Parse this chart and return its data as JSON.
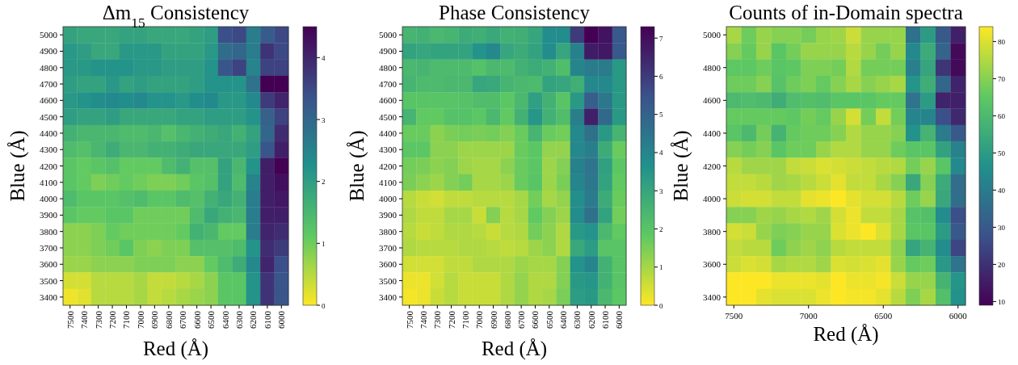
{
  "chart_data": [
    {
      "type": "heatmap",
      "title": "Δm$_{15}$ Consistency",
      "xlabel": "Red (Å)",
      "ylabel": "Blue (Å)",
      "categories": [
        "7500",
        "7400",
        "7300",
        "7200",
        "7100",
        "7000",
        "6900",
        "6800",
        "6700",
        "6600",
        "6500",
        "6400",
        "6300",
        "6200",
        "6100",
        "6000"
      ],
      "y_categories": [
        "5000",
        "4900",
        "4800",
        "4700",
        "4600",
        "4500",
        "4400",
        "4300",
        "4200",
        "4100",
        "4000",
        "3900",
        "3800",
        "3700",
        "3600",
        "3500",
        "3400"
      ],
      "cells": [
        [
          1.9,
          1.8,
          1.8,
          1.8,
          1.9,
          1.9,
          1.8,
          1.8,
          1.8,
          1.9,
          2.0,
          3.4,
          3.5,
          2.6,
          3.2,
          3.5
        ],
        [
          2.1,
          2.0,
          1.8,
          1.8,
          2.1,
          2.1,
          2.1,
          1.9,
          1.9,
          1.9,
          2.1,
          2.9,
          3.0,
          2.6,
          3.8,
          3.5
        ],
        [
          2.1,
          2.1,
          2.2,
          2.2,
          2.2,
          2.1,
          2.1,
          2.0,
          2.0,
          2.0,
          2.2,
          3.3,
          3.6,
          2.5,
          3.6,
          3.6
        ],
        [
          2.0,
          1.9,
          1.9,
          2.1,
          1.9,
          2.0,
          1.9,
          1.9,
          1.9,
          2.0,
          2.2,
          2.2,
          2.2,
          2.8,
          4.5,
          4.5
        ],
        [
          2.1,
          2.2,
          2.3,
          2.4,
          2.3,
          2.4,
          2.2,
          2.2,
          2.1,
          2.3,
          2.4,
          2.1,
          2.1,
          2.4,
          3.7,
          4.0
        ],
        [
          2.0,
          1.9,
          1.9,
          2.0,
          1.8,
          1.8,
          1.8,
          1.8,
          1.9,
          1.9,
          2.0,
          2.0,
          2.0,
          2.2,
          3.1,
          3.6
        ],
        [
          1.6,
          1.5,
          1.5,
          1.5,
          1.4,
          1.4,
          1.5,
          1.3,
          1.5,
          1.6,
          1.7,
          1.8,
          1.6,
          1.9,
          3.0,
          3.9
        ],
        [
          1.4,
          1.3,
          1.5,
          1.7,
          1.5,
          1.5,
          1.6,
          1.6,
          1.7,
          1.8,
          1.8,
          1.8,
          1.8,
          2.0,
          3.3,
          4.1
        ],
        [
          1.2,
          1.1,
          1.2,
          1.3,
          1.1,
          1.1,
          1.1,
          1.4,
          1.6,
          1.3,
          1.3,
          1.9,
          1.5,
          2.2,
          4.1,
          4.5
        ],
        [
          1.2,
          1.1,
          0.9,
          1.0,
          1.1,
          1.0,
          0.9,
          0.9,
          1.0,
          1.2,
          1.3,
          1.9,
          1.4,
          2.5,
          4.1,
          4.3
        ],
        [
          1.4,
          1.2,
          1.2,
          1.2,
          1.3,
          1.4,
          1.2,
          1.2,
          1.4,
          1.3,
          1.6,
          1.8,
          1.6,
          2.6,
          4.1,
          4.2
        ],
        [
          1.2,
          1.1,
          1.1,
          1.2,
          1.2,
          1.0,
          1.0,
          1.0,
          1.0,
          1.4,
          1.8,
          1.6,
          1.5,
          2.6,
          4.1,
          4.1
        ],
        [
          0.8,
          0.8,
          0.9,
          1.1,
          1.0,
          1.0,
          1.0,
          1.0,
          1.1,
          1.6,
          1.5,
          1.1,
          1.1,
          2.6,
          4.0,
          3.9
        ],
        [
          0.8,
          0.8,
          0.9,
          1.0,
          1.2,
          0.9,
          0.8,
          0.9,
          0.9,
          1.3,
          1.3,
          1.3,
          1.4,
          2.2,
          3.9,
          3.7
        ],
        [
          0.7,
          0.7,
          0.8,
          0.8,
          0.8,
          0.9,
          0.9,
          0.9,
          0.8,
          0.8,
          1.1,
          1.4,
          1.7,
          2.4,
          4.0,
          3.4
        ],
        [
          0.3,
          0.3,
          0.5,
          0.5,
          0.5,
          0.6,
          0.4,
          0.4,
          0.5,
          0.6,
          0.8,
          1.2,
          1.2,
          2.2,
          3.8,
          3.3
        ],
        [
          0.1,
          0.2,
          0.5,
          0.5,
          0.5,
          0.6,
          0.4,
          0.5,
          0.6,
          0.7,
          0.8,
          1.2,
          1.2,
          2.2,
          3.8,
          3.3
        ]
      ],
      "clim": [
        0,
        4.5
      ],
      "cticks": [
        0,
        1,
        2,
        3,
        4
      ],
      "colors": [
        "#fde725",
        "#5ec962",
        "#21918c",
        "#3b528b",
        "#440154"
      ]
    },
    {
      "type": "heatmap",
      "title": "Phase Consistency",
      "xlabel": "Red (Å)",
      "ylabel": "Blue (Å)",
      "categories": [
        "7500",
        "7400",
        "7300",
        "7200",
        "7100",
        "7000",
        "6900",
        "6800",
        "6700",
        "6600",
        "6500",
        "6400",
        "6300",
        "6200",
        "6100",
        "6000"
      ],
      "y_categories": [
        "5000",
        "4900",
        "4800",
        "4700",
        "4600",
        "4500",
        "4400",
        "4300",
        "4200",
        "4100",
        "4000",
        "3900",
        "3800",
        "3700",
        "3600",
        "3500",
        "3400"
      ],
      "cells": [
        [
          2.5,
          2.6,
          2.4,
          2.5,
          2.8,
          2.7,
          2.9,
          2.6,
          2.7,
          3.0,
          3.8,
          3.8,
          6.0,
          7.3,
          6.9,
          5.3
        ],
        [
          3.1,
          3.0,
          3.1,
          3.1,
          3.1,
          3.6,
          3.9,
          3.0,
          2.8,
          3.1,
          3.8,
          3.0,
          4.1,
          6.7,
          6.8,
          5.3
        ],
        [
          2.4,
          2.5,
          2.3,
          2.3,
          2.3,
          2.1,
          2.4,
          2.3,
          2.6,
          2.8,
          2.6,
          2.2,
          4.0,
          4.3,
          4.3,
          3.4
        ],
        [
          2.5,
          2.3,
          2.3,
          2.4,
          2.4,
          3.0,
          2.9,
          2.5,
          2.4,
          2.3,
          3.1,
          3.0,
          2.7,
          3.9,
          3.9,
          3.4
        ],
        [
          2.0,
          2.0,
          2.0,
          2.0,
          2.1,
          2.2,
          2.2,
          1.9,
          2.4,
          3.2,
          2.6,
          2.0,
          3.4,
          5.1,
          4.4,
          3.4
        ],
        [
          2.5,
          1.8,
          1.8,
          2.1,
          2.1,
          1.9,
          2.4,
          1.8,
          2.6,
          3.5,
          2.6,
          2.2,
          4.2,
          6.6,
          4.8,
          3.4
        ],
        [
          1.7,
          1.7,
          1.3,
          1.5,
          1.6,
          1.5,
          1.6,
          1.4,
          1.7,
          2.5,
          1.7,
          1.6,
          3.9,
          4.6,
          3.4,
          2.5
        ],
        [
          1.9,
          1.9,
          1.3,
          1.3,
          1.1,
          1.1,
          1.1,
          1.1,
          1.7,
          1.9,
          1.2,
          1.2,
          3.9,
          4.2,
          2.8,
          1.7
        ],
        [
          1.6,
          1.5,
          1.3,
          1.4,
          1.1,
          1.0,
          1.0,
          1.3,
          1.7,
          1.9,
          1.1,
          1.4,
          4.1,
          4.5,
          3.2,
          1.9
        ],
        [
          1.5,
          1.3,
          1.1,
          1.4,
          1.6,
          1.0,
          1.0,
          1.1,
          1.7,
          2.0,
          1.1,
          1.5,
          4.0,
          4.4,
          3.1,
          1.8
        ],
        [
          0.8,
          0.6,
          0.5,
          0.7,
          0.7,
          0.8,
          0.8,
          0.8,
          1.0,
          1.6,
          1.0,
          1.2,
          3.7,
          4.3,
          2.8,
          1.7
        ],
        [
          0.9,
          0.7,
          0.7,
          1.0,
          1.0,
          0.6,
          1.4,
          0.8,
          1.0,
          1.8,
          1.4,
          1.1,
          3.8,
          4.6,
          3.1,
          1.6
        ],
        [
          0.8,
          0.6,
          0.7,
          0.9,
          0.9,
          0.8,
          0.6,
          0.8,
          0.9,
          1.6,
          1.3,
          0.9,
          3.4,
          3.6,
          2.4,
          1.8
        ],
        [
          0.9,
          0.8,
          0.8,
          0.8,
          0.9,
          0.9,
          0.8,
          0.7,
          0.8,
          1.1,
          1.3,
          0.9,
          2.9,
          3.3,
          2.0,
          2.0
        ],
        [
          0.5,
          0.5,
          0.5,
          0.7,
          0.7,
          0.9,
          0.9,
          0.9,
          1.1,
          1.0,
          1.0,
          1.4,
          3.6,
          4.0,
          2.6,
          2.0
        ],
        [
          0.2,
          0.2,
          0.5,
          0.8,
          0.6,
          0.6,
          0.6,
          0.9,
          1.2,
          0.9,
          0.9,
          1.4,
          3.4,
          3.5,
          2.6,
          2.0
        ],
        [
          0.1,
          0.2,
          0.6,
          0.8,
          0.6,
          0.6,
          0.6,
          0.9,
          1.2,
          0.9,
          1.0,
          1.5,
          3.3,
          3.4,
          2.4,
          1.9
        ]
      ],
      "clim": [
        0,
        7.3
      ],
      "cticks": [
        0,
        1,
        2,
        3,
        4,
        5,
        6,
        7
      ],
      "colors": [
        "#fde725",
        "#5ec962",
        "#21918c",
        "#3b528b",
        "#440154"
      ]
    },
    {
      "type": "heatmap",
      "title": "Counts of in-Domain spectra",
      "xlabel": "Red (Å)",
      "ylabel": "Blue (Å)",
      "categories": [
        "7500",
        null,
        null,
        null,
        null,
        "7000",
        null,
        null,
        null,
        null,
        "6500",
        null,
        null,
        null,
        null,
        "6000"
      ],
      "y_categories": [
        "5000",
        null,
        "4800",
        null,
        "4600",
        null,
        "4400",
        null,
        "4200",
        null,
        "4000",
        null,
        "3800",
        null,
        "3600",
        null,
        "3400"
      ],
      "cells": [
        [
          74,
          67,
          72,
          70,
          70,
          68,
          72,
          73,
          78,
          72,
          72,
          72,
          37,
          50,
          30,
          16
        ],
        [
          70,
          66,
          72,
          64,
          68,
          72,
          72,
          72,
          76,
          72,
          68,
          72,
          44,
          55,
          33,
          11
        ],
        [
          65,
          65,
          67,
          64,
          65,
          69,
          69,
          68,
          75,
          68,
          68,
          68,
          41,
          53,
          21,
          11
        ],
        [
          67,
          67,
          70,
          63,
          67,
          69,
          66,
          70,
          74,
          70,
          72,
          74,
          48,
          56,
          34,
          17
        ],
        [
          60,
          61,
          60,
          56,
          61,
          62,
          61,
          64,
          64,
          64,
          66,
          66,
          38,
          50,
          17,
          16
        ],
        [
          66,
          66,
          66,
          66,
          65,
          68,
          66,
          72,
          79,
          68,
          77,
          68,
          43,
          43,
          27,
          18
        ],
        [
          64,
          60,
          68,
          58,
          66,
          67,
          67,
          70,
          75,
          72,
          72,
          70,
          47,
          58,
          40,
          30
        ],
        [
          70,
          68,
          70,
          64,
          67,
          67,
          72,
          75,
          75,
          72,
          72,
          67,
          64,
          64,
          52,
          42
        ],
        [
          76,
          73,
          73,
          73,
          77,
          78,
          80,
          79,
          78,
          77,
          76,
          75,
          68,
          72,
          64,
          44
        ],
        [
          77,
          77,
          76,
          73,
          74,
          76,
          78,
          81,
          77,
          77,
          74,
          70,
          54,
          70,
          55,
          36
        ],
        [
          78,
          79,
          79,
          77,
          77,
          81,
          82,
          84,
          81,
          79,
          79,
          76,
          67,
          72,
          54,
          36
        ],
        [
          70,
          70,
          73,
          72,
          74,
          75,
          73,
          79,
          82,
          77,
          77,
          74,
          63,
          62,
          45,
          27
        ],
        [
          79,
          78,
          72,
          69,
          70,
          72,
          72,
          80,
          82,
          84,
          80,
          74,
          64,
          64,
          50,
          30
        ],
        [
          77,
          76,
          76,
          67,
          71,
          73,
          71,
          76,
          77,
          77,
          77,
          71,
          53,
          58,
          45,
          25
        ],
        [
          78,
          80,
          79,
          74,
          75,
          75,
          73,
          80,
          79,
          80,
          81,
          72,
          66,
          67,
          49,
          38
        ],
        [
          84,
          84,
          84,
          82,
          82,
          82,
          81,
          84,
          82,
          82,
          83,
          78,
          72,
          72,
          58,
          48
        ],
        [
          84,
          84,
          81,
          80,
          80,
          80,
          82,
          84,
          83,
          83,
          81,
          76,
          69,
          74,
          62,
          47
        ]
      ],
      "clim": [
        9,
        84
      ],
      "cticks": [
        10,
        20,
        30,
        40,
        50,
        60,
        70,
        80
      ],
      "colors": [
        "#440154",
        "#3b528b",
        "#21918c",
        "#5ec962",
        "#fde725"
      ]
    }
  ]
}
